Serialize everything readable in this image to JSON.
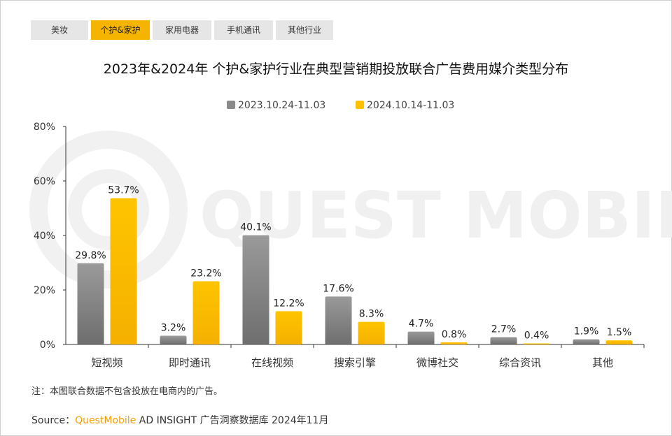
{
  "tabs": [
    {
      "label": "美妆",
      "active": false
    },
    {
      "label": "个护&家护",
      "active": true
    },
    {
      "label": "家用电器",
      "active": false
    },
    {
      "label": "手机通讯",
      "active": false
    },
    {
      "label": "其他行业",
      "active": false
    }
  ],
  "watermark": "QUEST MOBILE",
  "note": "注：本图联合数据不包含投放在电商内的广告。",
  "source": {
    "prefix": "Source：",
    "brand": "QuestMobile",
    "rest": " AD INSIGHT 广告洞察数据库 2024年11月"
  },
  "colors": {
    "series_2023": "#8a8a8a",
    "series_2024": "#ffc000",
    "active_tab": "#f5b400"
  },
  "chart_data": {
    "type": "bar",
    "title": "2023年&2024年 个护&家护行业在典型营销期投放联合广告费用媒介类型分布",
    "categories": [
      "短视频",
      "即时通讯",
      "在线视频",
      "搜索引擎",
      "微博社交",
      "综合资讯",
      "其他"
    ],
    "series": [
      {
        "name": "2023.10.24-11.03",
        "values": [
          29.8,
          3.2,
          40.1,
          17.6,
          4.7,
          2.7,
          1.9
        ],
        "labels": [
          "29.8%",
          "3.2%",
          "40.1%",
          "17.6%",
          "4.7%",
          "2.7%",
          "1.9%"
        ]
      },
      {
        "name": "2024.10.14-11.03",
        "values": [
          53.7,
          23.2,
          12.2,
          8.3,
          0.8,
          0.4,
          1.5
        ],
        "labels": [
          "53.7%",
          "23.2%",
          "12.2%",
          "8.3%",
          "0.8%",
          "0.4%",
          "1.5%"
        ]
      }
    ],
    "yticks": [
      "0%",
      "20%",
      "40%",
      "60%",
      "80%"
    ],
    "ytick_values": [
      0,
      20,
      40,
      60,
      80
    ],
    "ylim": [
      0,
      80
    ],
    "legend_position": "top-center",
    "grid": false
  }
}
